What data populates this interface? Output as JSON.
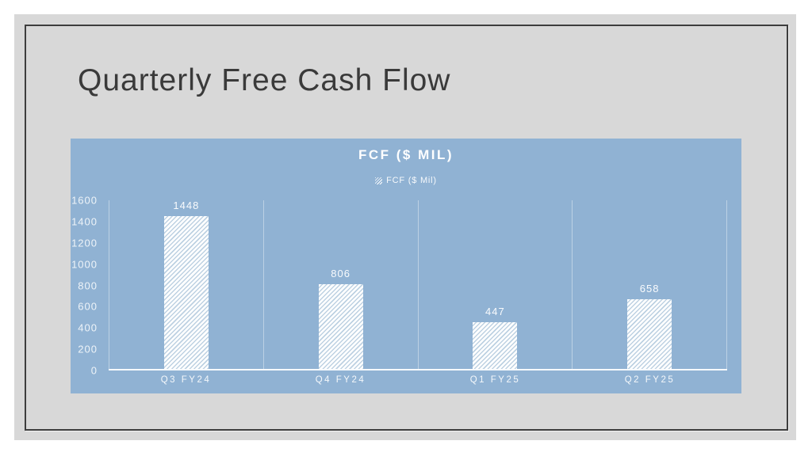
{
  "slide": {
    "title": "Quarterly Free Cash Flow"
  },
  "chart_data": {
    "type": "bar",
    "title": "FCF ($ MIL)",
    "legend": {
      "label": "FCF ($ Mil)",
      "position": "top-center",
      "swatch_style": "white-diagonal-hatch"
    },
    "categories": [
      "Q3 FY24",
      "Q4 FY24",
      "Q1 FY25",
      "Q2 FY25"
    ],
    "values": [
      1448,
      806,
      447,
      658
    ],
    "xlabel": "",
    "ylabel": "",
    "ylim": [
      0,
      1600
    ],
    "y_ticks": [
      0,
      200,
      400,
      600,
      800,
      1000,
      1200,
      1400,
      1600
    ],
    "grid": "vertical category separators and bottom axis line",
    "bar_style": "white-diagonal-hatch"
  },
  "colors": {
    "page_bg": "#ffffff",
    "slide_bg": "#d8d8d8",
    "frame_border": "#3d3d3d",
    "chart_bg": "#90b2d3",
    "bar_base": "#ffffff",
    "bar_hatch_line": "#bdd1e2",
    "slide_title_text": "#3a3a3a",
    "chart_text": "#ffffff"
  }
}
